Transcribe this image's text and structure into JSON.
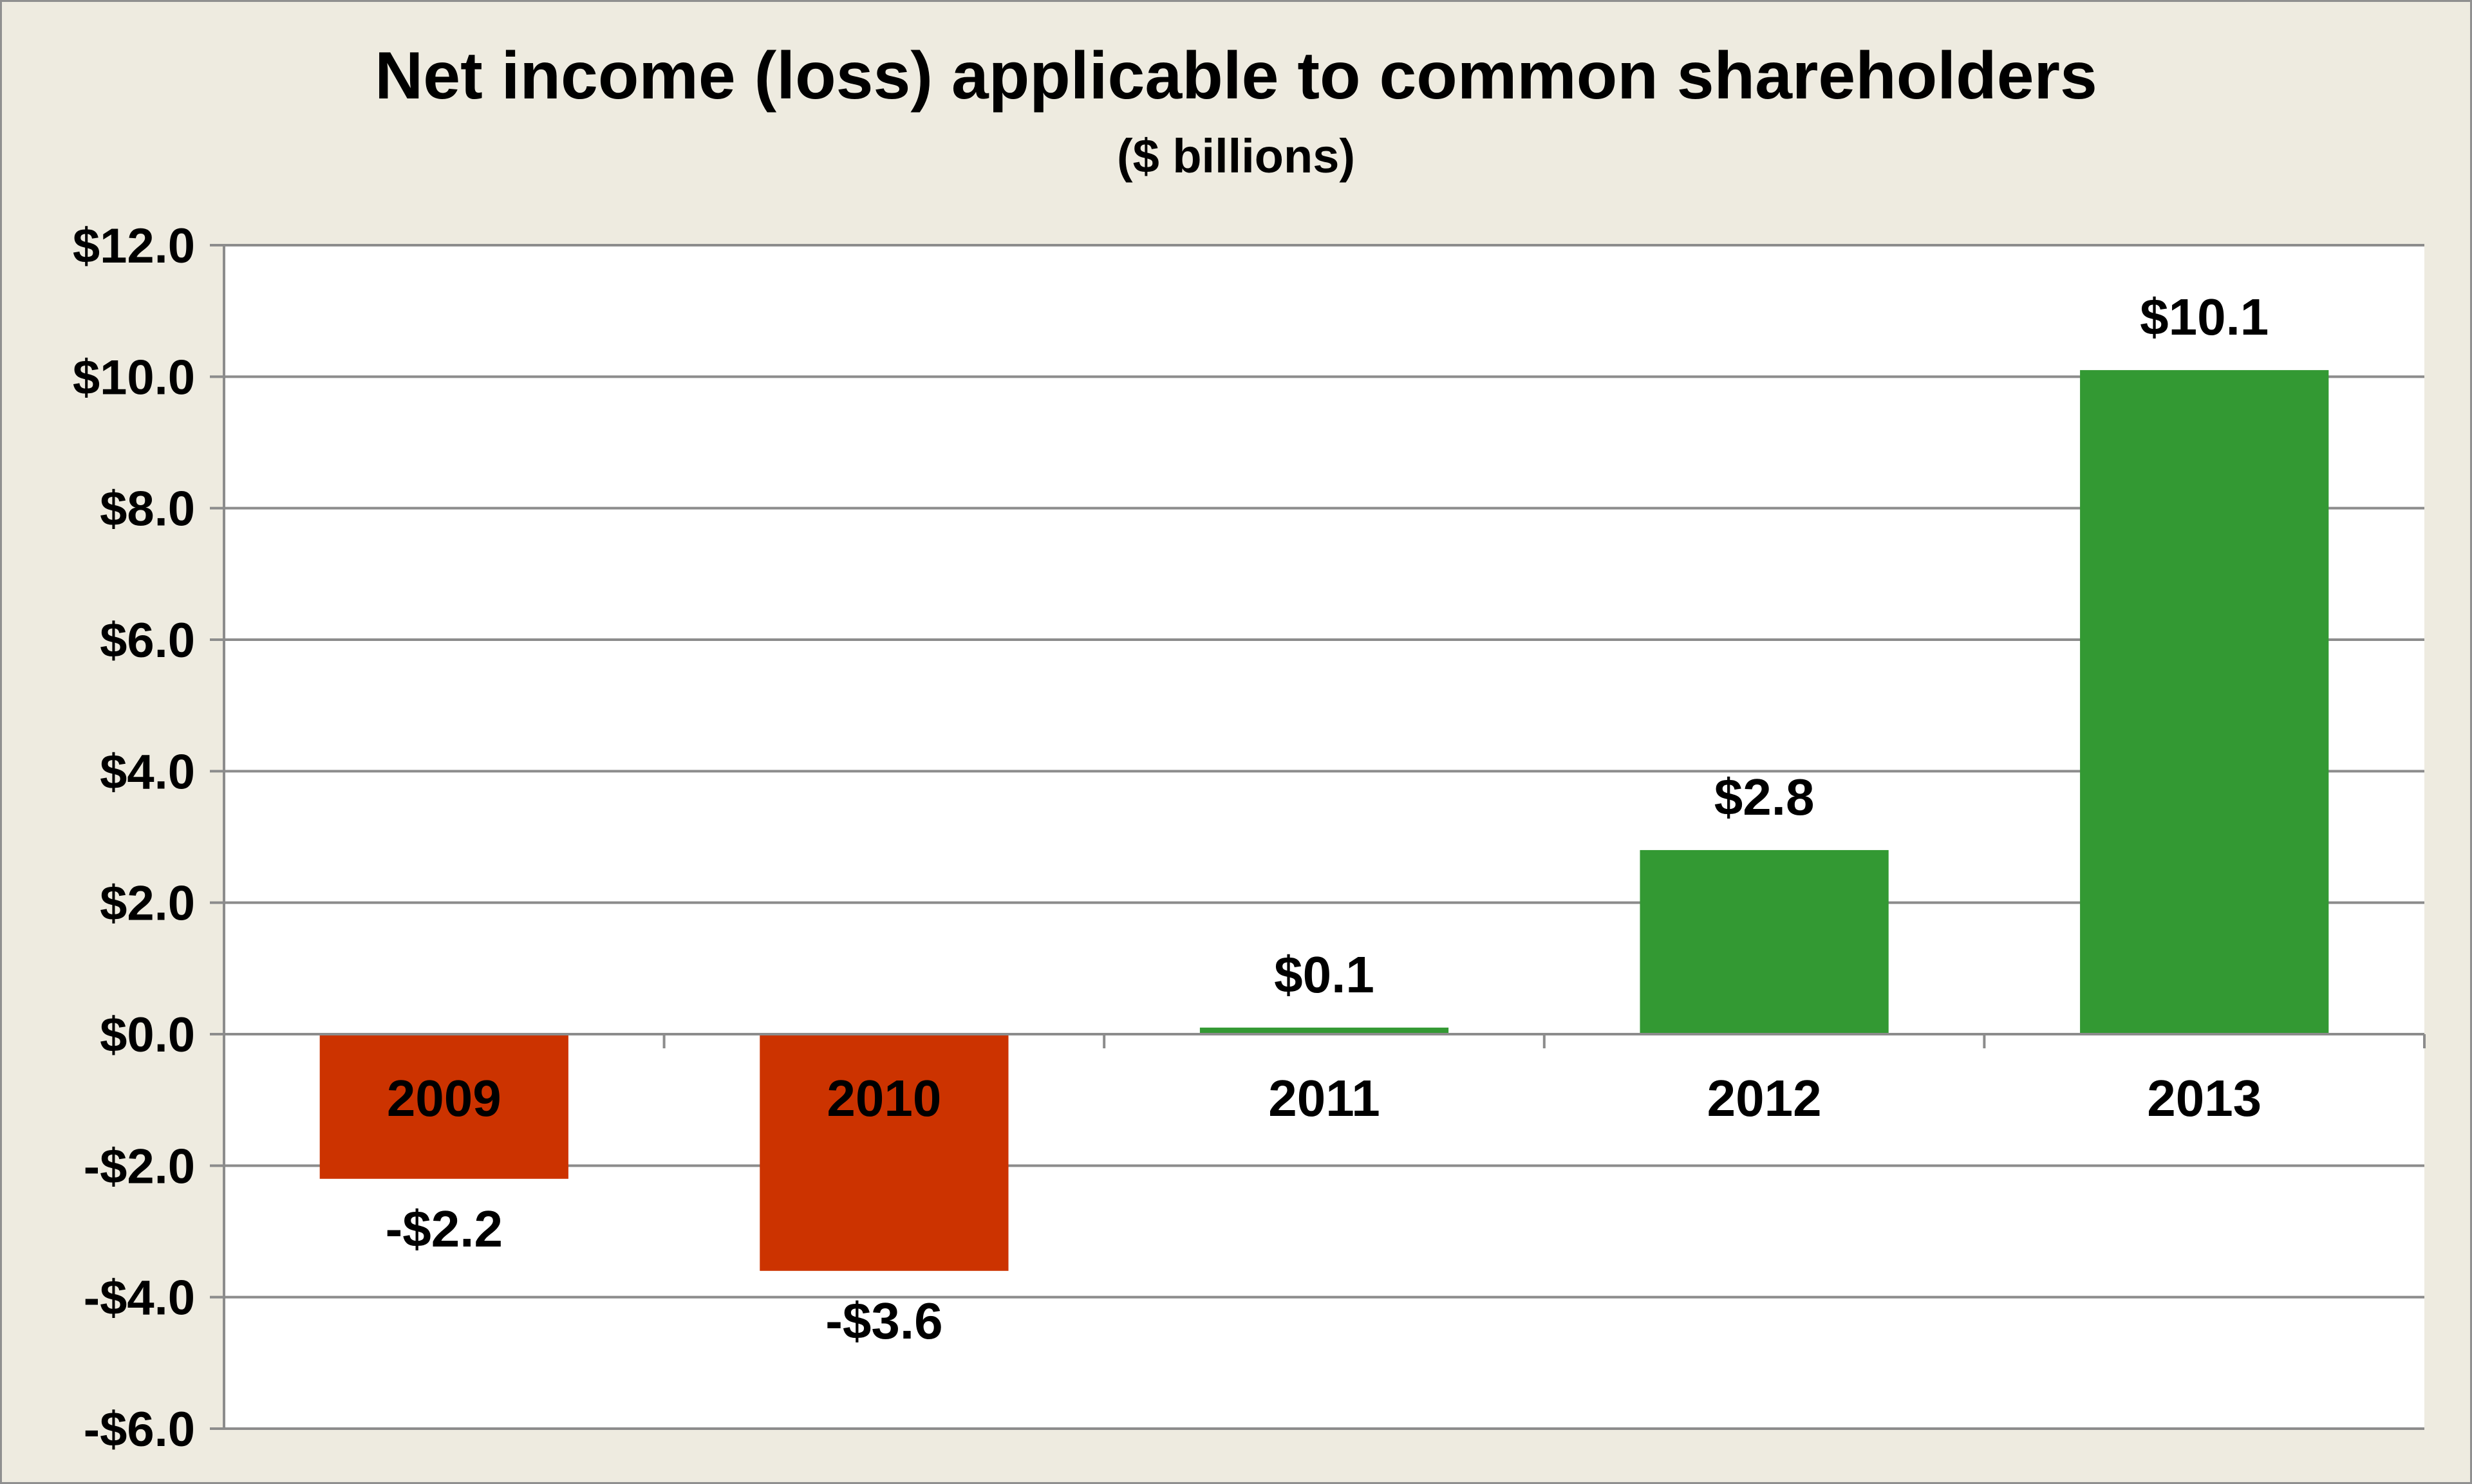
{
  "chart_data": {
    "type": "bar",
    "title": "Net income (loss) applicable to common shareholders",
    "subtitle": "($ billions)",
    "categories": [
      "2009",
      "2010",
      "2011",
      "2012",
      "2013"
    ],
    "values": [
      -2.2,
      -3.6,
      0.1,
      2.8,
      10.1
    ],
    "data_labels": [
      "-$2.2",
      "-$3.6",
      "$0.1",
      "$2.8",
      "$10.1"
    ],
    "ylim": [
      -6,
      12
    ],
    "yticks": [
      12,
      10,
      8,
      6,
      4,
      2,
      0,
      -2,
      -4,
      -6
    ],
    "ytick_labels": [
      "$12.0",
      "$10.0",
      "$8.0",
      "$6.0",
      "$4.0",
      "$2.0",
      "$0.0",
      "-$2.0",
      "-$4.0",
      "-$6.0"
    ],
    "xlabel": "",
    "ylabel": "",
    "grid": true,
    "colors": {
      "positive": "#339933",
      "negative": "#cc3300",
      "background": "#eeebe0",
      "plot": "#ffffff",
      "grid": "#8c8c8c"
    }
  }
}
